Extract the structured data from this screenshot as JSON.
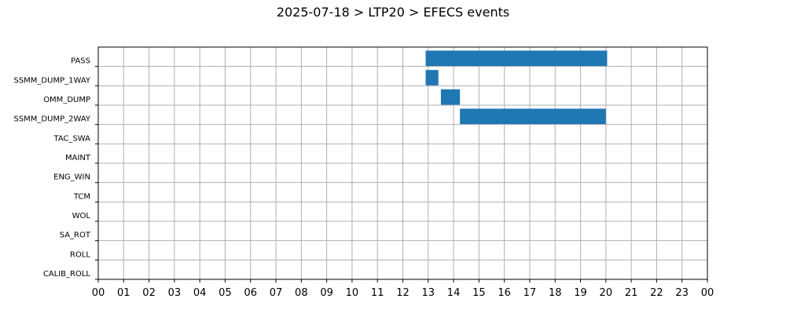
{
  "chart_data": {
    "type": "gantt",
    "title": "2025-07-18 > LTP20 > EFECS events",
    "xlabel": "",
    "ylabel": "",
    "xlim": [
      0,
      24
    ],
    "x_tick_labels": [
      "00",
      "01",
      "02",
      "03",
      "04",
      "05",
      "06",
      "07",
      "08",
      "09",
      "10",
      "11",
      "12",
      "13",
      "14",
      "15",
      "16",
      "17",
      "18",
      "19",
      "20",
      "21",
      "22",
      "23",
      "00"
    ],
    "categories": [
      "PASS",
      "SSMM_DUMP_1WAY",
      "OMM_DUMP",
      "SSMM_DUMP_2WAY",
      "TAC_SWA",
      "MAINT",
      "ENG_WIN",
      "TCM",
      "WOL",
      "SA_ROT",
      "ROLL",
      "CALIB_ROLL"
    ],
    "events": [
      {
        "category": "PASS",
        "start": 12.9,
        "end": 20.05
      },
      {
        "category": "SSMM_DUMP_1WAY",
        "start": 12.9,
        "end": 13.4
      },
      {
        "category": "OMM_DUMP",
        "start": 13.5,
        "end": 14.25
      },
      {
        "category": "SSMM_DUMP_2WAY",
        "start": 14.25,
        "end": 20.0
      }
    ],
    "grid": true,
    "bar_color": "#1f77b4",
    "grid_color": "#b0b0b0"
  }
}
